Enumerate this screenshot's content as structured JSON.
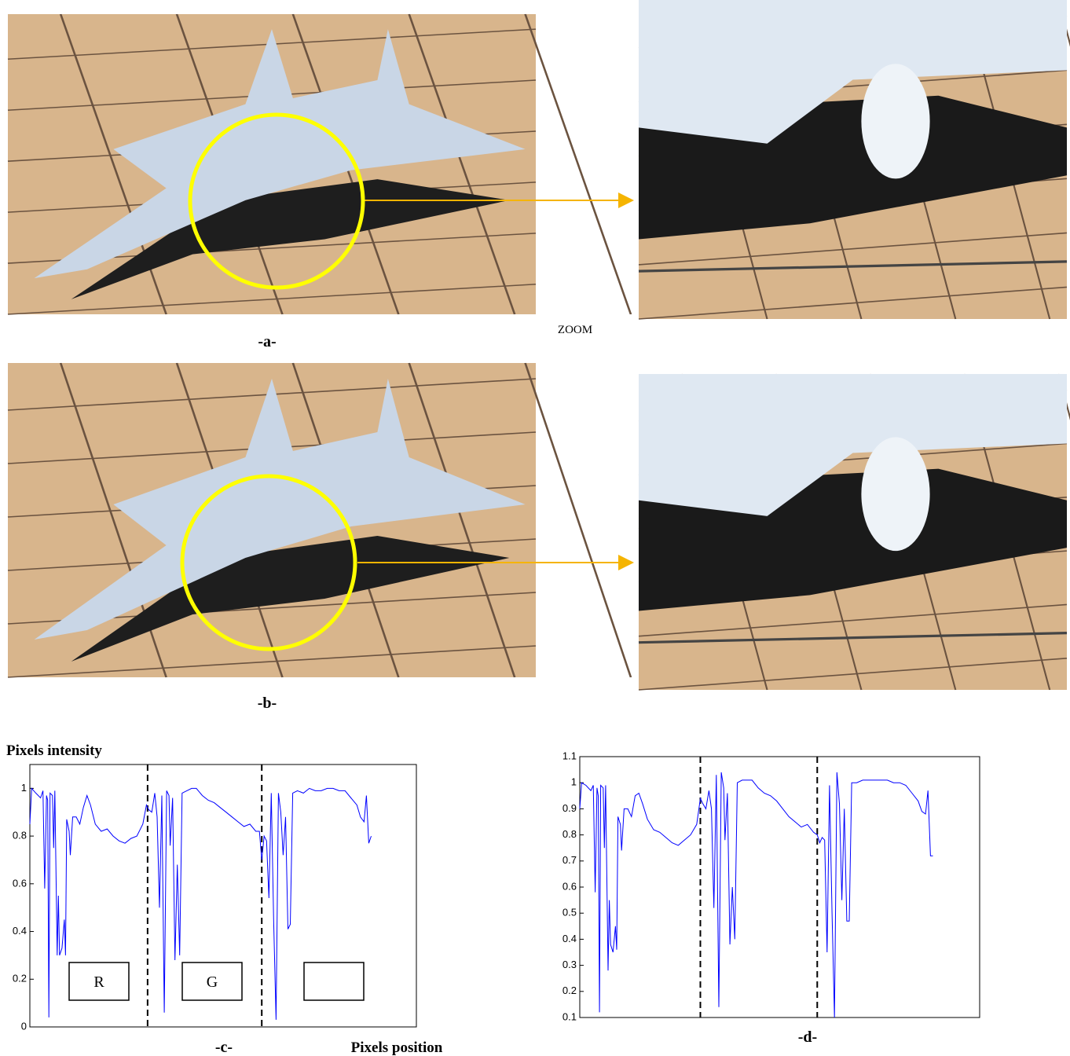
{
  "figure": {
    "caption_a": "-a-",
    "zoom_label": "ZOOM",
    "caption_b": "-b-"
  },
  "chart_data": [
    {
      "type": "line",
      "caption": "-c-",
      "ylabel": "Pixels intensity",
      "xlabel": "Pixels position",
      "annotations": [
        "R",
        "G"
      ],
      "xlim": [
        0,
        650
      ],
      "ylim": [
        0,
        1.1
      ],
      "yticks": [
        0,
        0.2,
        0.4,
        0.6,
        0.8,
        1
      ],
      "vlines": [
        198,
        390
      ],
      "x": [
        0,
        3,
        10,
        18,
        22,
        25,
        28,
        30,
        32,
        34,
        38,
        40,
        42,
        46,
        48,
        50,
        54,
        58,
        60,
        62,
        66,
        68,
        72,
        78,
        84,
        90,
        96,
        102,
        110,
        120,
        130,
        140,
        150,
        160,
        170,
        180,
        190,
        196,
        200,
        205,
        210,
        214,
        218,
        222,
        226,
        230,
        234,
        236,
        240,
        244,
        248,
        252,
        256,
        264,
        272,
        280,
        290,
        300,
        310,
        320,
        330,
        340,
        350,
        360,
        370,
        380,
        386,
        390,
        394,
        398,
        402,
        406,
        410,
        414,
        418,
        422,
        426,
        430,
        434,
        438,
        442,
        450,
        460,
        470,
        480,
        490,
        500,
        510,
        520,
        530,
        540,
        550,
        556,
        562,
        566,
        570,
        574
      ],
      "series": [
        {
          "color": "#0000ff",
          "values": [
            0.85,
            1.0,
            0.98,
            0.96,
            0.99,
            0.58,
            0.97,
            0.95,
            0.04,
            0.98,
            0.97,
            0.75,
            0.99,
            0.3,
            0.55,
            0.3,
            0.33,
            0.45,
            0.3,
            0.87,
            0.82,
            0.72,
            0.88,
            0.88,
            0.85,
            0.92,
            0.97,
            0.93,
            0.85,
            0.82,
            0.83,
            0.8,
            0.78,
            0.77,
            0.79,
            0.8,
            0.85,
            0.93,
            0.91,
            0.9,
            0.98,
            0.88,
            0.5,
            0.97,
            0.06,
            0.99,
            0.97,
            0.76,
            0.96,
            0.28,
            0.68,
            0.3,
            0.98,
            0.99,
            1.0,
            1.0,
            0.97,
            0.95,
            0.94,
            0.92,
            0.9,
            0.88,
            0.86,
            0.84,
            0.85,
            0.82,
            0.82,
            0.7,
            0.8,
            0.78,
            0.54,
            0.98,
            0.45,
            0.03,
            0.98,
            0.9,
            0.72,
            0.88,
            0.41,
            0.43,
            0.98,
            0.99,
            0.98,
            1.0,
            0.99,
            0.99,
            1.0,
            1.0,
            0.99,
            0.99,
            0.96,
            0.93,
            0.88,
            0.86,
            0.97,
            0.77,
            0.8
          ]
        }
      ]
    },
    {
      "type": "line",
      "caption": "-d-",
      "xlim": [
        0,
        650
      ],
      "ylim": [
        0.1,
        1.1
      ],
      "yticks": [
        0.1,
        0.2,
        0.3,
        0.4,
        0.5,
        0.6,
        0.7,
        0.8,
        0.9,
        1,
        1.1
      ],
      "vlines": [
        196,
        386
      ],
      "x": [
        0,
        3,
        10,
        18,
        22,
        25,
        28,
        30,
        32,
        34,
        38,
        40,
        42,
        46,
        48,
        50,
        54,
        58,
        60,
        62,
        66,
        68,
        72,
        78,
        84,
        90,
        96,
        102,
        110,
        120,
        130,
        140,
        150,
        160,
        170,
        180,
        190,
        196,
        200,
        205,
        210,
        214,
        218,
        222,
        226,
        230,
        234,
        236,
        240,
        244,
        248,
        252,
        256,
        264,
        272,
        280,
        290,
        300,
        310,
        320,
        330,
        340,
        350,
        360,
        370,
        380,
        386,
        390,
        394,
        398,
        402,
        406,
        410,
        414,
        418,
        422,
        426,
        430,
        434,
        438,
        442,
        450,
        460,
        470,
        480,
        490,
        500,
        510,
        520,
        530,
        540,
        550,
        556,
        562,
        566,
        570,
        574
      ],
      "series": [
        {
          "color": "#0000ff",
          "values": [
            0.9,
            1.0,
            0.99,
            0.97,
            0.99,
            0.58,
            0.98,
            0.95,
            0.12,
            0.99,
            0.98,
            0.75,
            0.99,
            0.28,
            0.55,
            0.38,
            0.35,
            0.45,
            0.36,
            0.87,
            0.84,
            0.74,
            0.9,
            0.9,
            0.87,
            0.95,
            0.96,
            0.92,
            0.86,
            0.82,
            0.81,
            0.79,
            0.77,
            0.76,
            0.78,
            0.8,
            0.84,
            0.94,
            0.92,
            0.9,
            0.97,
            0.9,
            0.52,
            1.03,
            0.14,
            1.04,
            0.98,
            0.78,
            0.96,
            0.38,
            0.6,
            0.4,
            1.0,
            1.01,
            1.01,
            1.01,
            0.98,
            0.96,
            0.95,
            0.93,
            0.9,
            0.87,
            0.85,
            0.83,
            0.84,
            0.81,
            0.8,
            0.77,
            0.79,
            0.78,
            0.35,
            0.99,
            0.5,
            0.1,
            1.04,
            0.92,
            0.55,
            0.9,
            0.47,
            0.47,
            1.0,
            1.0,
            1.01,
            1.01,
            1.01,
            1.01,
            1.01,
            1.0,
            1.0,
            0.99,
            0.96,
            0.93,
            0.89,
            0.88,
            0.97,
            0.72,
            0.72
          ]
        }
      ]
    }
  ]
}
